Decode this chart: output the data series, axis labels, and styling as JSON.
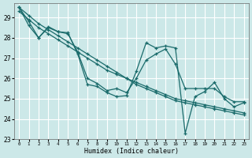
{
  "xlabel": "Humidex (Indice chaleur)",
  "ylabel": "",
  "xlim": [
    -0.5,
    23.5
  ],
  "ylim": [
    23.0,
    29.7
  ],
  "background_color": "#cce8e8",
  "grid_color": "#ffffff",
  "line_color": "#1a6b6b",
  "series": [
    {
      "x": [
        0,
        1,
        2,
        3,
        4,
        5,
        6,
        7,
        8,
        9,
        10,
        11,
        12,
        13,
        14,
        15,
        16,
        17,
        18,
        19,
        20,
        21,
        22,
        23
      ],
      "y": [
        29.5,
        29.1,
        28.7,
        28.4,
        28.1,
        27.8,
        27.5,
        27.2,
        26.9,
        26.6,
        26.3,
        26.0,
        25.8,
        25.6,
        25.4,
        25.2,
        25.0,
        24.9,
        24.8,
        24.7,
        24.6,
        24.5,
        24.4,
        24.3
      ]
    },
    {
      "x": [
        0,
        1,
        2,
        3,
        4,
        5,
        6,
        7,
        8,
        9,
        10,
        11,
        12,
        13,
        14,
        15,
        16,
        17,
        18,
        19,
        20,
        21,
        22,
        23
      ],
      "y": [
        29.3,
        28.9,
        28.5,
        28.2,
        27.9,
        27.6,
        27.3,
        27.0,
        26.7,
        26.4,
        26.2,
        26.0,
        25.7,
        25.5,
        25.3,
        25.1,
        24.9,
        24.8,
        24.7,
        24.6,
        24.5,
        24.4,
        24.3,
        24.2
      ]
    },
    {
      "x": [
        0,
        1,
        2,
        3,
        4,
        5,
        6,
        7,
        8,
        9,
        10,
        11,
        12,
        13,
        14,
        15,
        16,
        17,
        18,
        19,
        20,
        21,
        22,
        23
      ],
      "y": [
        29.5,
        28.8,
        28.0,
        28.55,
        28.3,
        28.25,
        27.2,
        25.7,
        25.6,
        25.3,
        25.1,
        25.15,
        26.35,
        27.75,
        27.5,
        27.6,
        27.5,
        23.3,
        25.1,
        25.35,
        25.8,
        25.0,
        24.6,
        24.8
      ]
    },
    {
      "x": [
        0,
        1,
        2,
        3,
        4,
        5,
        6,
        7,
        8,
        9,
        10,
        11,
        12,
        13,
        14,
        15,
        16,
        17,
        18,
        19,
        20,
        21,
        22,
        23
      ],
      "y": [
        29.5,
        28.6,
        28.0,
        28.5,
        28.3,
        28.2,
        27.3,
        26.0,
        25.75,
        25.4,
        25.5,
        25.3,
        26.0,
        26.9,
        27.2,
        27.45,
        26.7,
        25.5,
        25.5,
        25.5,
        25.5,
        25.1,
        24.85,
        24.85
      ]
    }
  ],
  "yticks": [
    23,
    24,
    25,
    26,
    27,
    28,
    29
  ],
  "xticks": [
    0,
    1,
    2,
    3,
    4,
    5,
    6,
    7,
    8,
    9,
    10,
    11,
    12,
    13,
    14,
    15,
    16,
    17,
    18,
    19,
    20,
    21,
    22,
    23
  ],
  "marker": "+",
  "markersize": 3,
  "linewidth": 0.9
}
